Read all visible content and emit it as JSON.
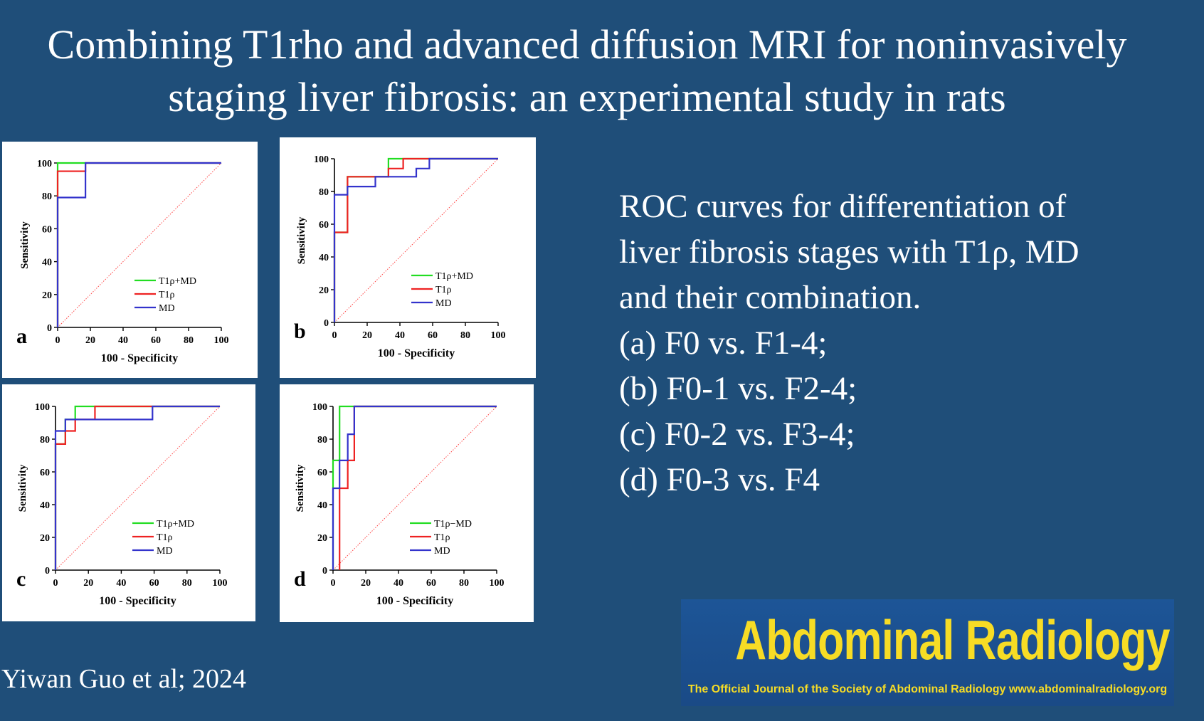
{
  "title": {
    "line1": "Combining T1rho and advanced diffusion MRI for noninvasively",
    "line2": "staging liver fibrosis: an experimental study in rats"
  },
  "caption": [
    "ROC curves for differentiation of",
    "liver fibrosis stages with T1ρ, MD",
    "and their combination.",
    "(a) F0 vs. F1-4;",
    "(b) F0-1 vs. F2-4;",
    "(c) F0-2 vs. F3-4;",
    "(d) F0-3 vs. F4"
  ],
  "author": "Yiwan Guo et al; 2024",
  "journal": {
    "name": "Abdominal Radiology",
    "subtitle": "The Official Journal of the Society of Abdominal Radiology www.abdominalradiology.org"
  },
  "colors": {
    "background": "#1f4e79",
    "green": "#22dd22",
    "red": "#ee2222",
    "blue": "#3333cc",
    "diagonal": "#ff4444",
    "journal_text": "#f7dc25"
  },
  "chart_data": [
    {
      "type": "line",
      "panel_label": "a",
      "xlabel": "100 - Specificity",
      "ylabel": "Sensitivity",
      "xlim": [
        0,
        100
      ],
      "ylim": [
        0,
        100
      ],
      "xticks": [
        0,
        20,
        40,
        60,
        80,
        100
      ],
      "yticks": [
        0,
        20,
        40,
        60,
        80,
        100
      ],
      "legend": [
        "T1ρ+MD",
        "T1ρ",
        "MD"
      ],
      "series": [
        {
          "name": "T1ρ+MD",
          "color": "green",
          "x": [
            0,
            0,
            100
          ],
          "y": [
            0,
            100,
            100
          ]
        },
        {
          "name": "T1ρ",
          "color": "red",
          "x": [
            0,
            0,
            0,
            17,
            17,
            100
          ],
          "y": [
            0,
            80,
            95,
            95,
            100,
            100
          ]
        },
        {
          "name": "MD",
          "color": "blue",
          "x": [
            0,
            0,
            17,
            17,
            100
          ],
          "y": [
            0,
            79,
            79,
            100,
            100
          ]
        }
      ]
    },
    {
      "type": "line",
      "panel_label": "b",
      "xlabel": "100 - Specificity",
      "ylabel": "Sensitivity",
      "xlim": [
        0,
        100
      ],
      "ylim": [
        0,
        100
      ],
      "xticks": [
        0,
        20,
        40,
        60,
        80,
        100
      ],
      "yticks": [
        0,
        20,
        40,
        60,
        80,
        100
      ],
      "legend": [
        "T1ρ+MD",
        "T1ρ",
        "MD"
      ],
      "series": [
        {
          "name": "T1ρ+MD",
          "color": "green",
          "x": [
            0,
            0,
            8,
            8,
            33,
            33,
            100
          ],
          "y": [
            0,
            55,
            55,
            89,
            89,
            100,
            100
          ]
        },
        {
          "name": "T1ρ",
          "color": "red",
          "x": [
            0,
            0,
            8,
            8,
            33,
            33,
            42,
            42,
            100
          ],
          "y": [
            0,
            55,
            55,
            89,
            89,
            94,
            94,
            100,
            100
          ]
        },
        {
          "name": "MD",
          "color": "blue",
          "x": [
            0,
            0,
            8,
            8,
            25,
            25,
            50,
            50,
            58,
            58,
            100
          ],
          "y": [
            0,
            78,
            78,
            83,
            83,
            89,
            89,
            94,
            94,
            100,
            100
          ]
        }
      ]
    },
    {
      "type": "line",
      "panel_label": "c",
      "xlabel": "100 - Specificity",
      "ylabel": "Sensitivity",
      "xlim": [
        0,
        100
      ],
      "ylim": [
        0,
        100
      ],
      "xticks": [
        0,
        20,
        40,
        60,
        80,
        100
      ],
      "yticks": [
        0,
        20,
        40,
        60,
        80,
        100
      ],
      "legend": [
        "T1ρ+MD",
        "T1ρ",
        "MD"
      ],
      "series": [
        {
          "name": "T1ρ+MD",
          "color": "green",
          "x": [
            0,
            0,
            6,
            6,
            12,
            12,
            100
          ],
          "y": [
            0,
            77,
            77,
            92,
            92,
            100,
            100
          ]
        },
        {
          "name": "T1ρ",
          "color": "red",
          "x": [
            0,
            0,
            6,
            6,
            12,
            12,
            24,
            24,
            100
          ],
          "y": [
            0,
            77,
            77,
            85,
            85,
            92,
            92,
            100,
            100
          ]
        },
        {
          "name": "MD",
          "color": "blue",
          "x": [
            0,
            0,
            6,
            6,
            59,
            59,
            100
          ],
          "y": [
            0,
            85,
            85,
            92,
            92,
            100,
            100
          ]
        }
      ]
    },
    {
      "type": "line",
      "panel_label": "d",
      "xlabel": "100 - Specificity",
      "ylabel": "Sensitivity",
      "xlim": [
        0,
        100
      ],
      "ylim": [
        0,
        100
      ],
      "xticks": [
        0,
        20,
        40,
        60,
        80,
        100
      ],
      "yticks": [
        0,
        20,
        40,
        60,
        80,
        100
      ],
      "legend": [
        "T1ρ−MD",
        "T1ρ",
        "MD"
      ],
      "series": [
        {
          "name": "T1ρ−MD",
          "color": "green",
          "x": [
            0,
            0,
            4,
            4,
            11,
            11,
            100
          ],
          "y": [
            0,
            67,
            67,
            100,
            100,
            100,
            100
          ]
        },
        {
          "name": "T1ρ",
          "color": "red",
          "x": [
            4,
            4,
            9,
            9,
            13,
            13,
            100
          ],
          "y": [
            0,
            50,
            50,
            67,
            67,
            100,
            100
          ]
        },
        {
          "name": "MD",
          "color": "blue",
          "x": [
            0,
            0,
            4,
            4,
            9,
            9,
            13,
            13,
            100
          ],
          "y": [
            0,
            50,
            50,
            67,
            67,
            83,
            83,
            100,
            100
          ]
        }
      ]
    }
  ]
}
